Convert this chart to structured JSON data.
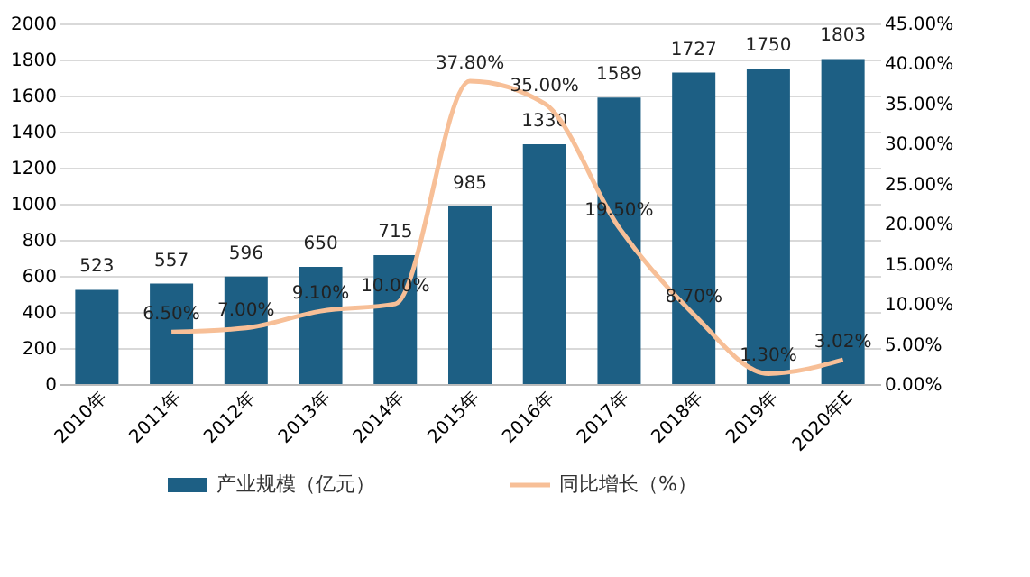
{
  "chart_data": {
    "type": "bar",
    "categories": [
      "2010年",
      "2011年",
      "2012年",
      "2013年",
      "2014年",
      "2015年",
      "2016年",
      "2017年",
      "2018年",
      "2019年",
      "2020年E"
    ],
    "series": [
      {
        "name": "产业规模（亿元）",
        "color": "#1d5f84",
        "values": [
          523,
          557,
          596,
          650,
          715,
          985,
          1330,
          1589,
          1727,
          1750,
          1803
        ]
      },
      {
        "name": "同比增长（%）",
        "type": "line",
        "axis": "y2",
        "color": "#f7bf97",
        "values": [
          null,
          6.5,
          7.0,
          9.1,
          10.0,
          37.8,
          35.0,
          19.5,
          8.7,
          1.3,
          3.02
        ],
        "value_labels": [
          null,
          "6.50%",
          "7.00%",
          "9.10%",
          "10.00%",
          "37.80%",
          "35.00%",
          "19.50%",
          "8.70%",
          "1.30%",
          "3.02%"
        ]
      }
    ],
    "data_labels": true,
    "ylim": [
      0,
      2000
    ],
    "yticks": [
      0,
      200,
      400,
      600,
      800,
      1000,
      1200,
      1400,
      1600,
      1800,
      2000
    ],
    "y2lim": [
      0,
      45
    ],
    "y2ticks": [
      {
        "value": 0,
        "label": "0.00%"
      },
      {
        "value": 5,
        "label": "5.00%"
      },
      {
        "value": 10,
        "label": "10.00%"
      },
      {
        "value": 15,
        "label": "15.00%"
      },
      {
        "value": 20,
        "label": "20.00%"
      },
      {
        "value": 25,
        "label": "25.00%"
      },
      {
        "value": 30,
        "label": "30.00%"
      },
      {
        "value": 35,
        "label": "35.00%"
      },
      {
        "value": 40,
        "label": "40.00%"
      },
      {
        "value": 45,
        "label": "45.00%"
      }
    ],
    "grid": "y",
    "legend": "bottom"
  }
}
